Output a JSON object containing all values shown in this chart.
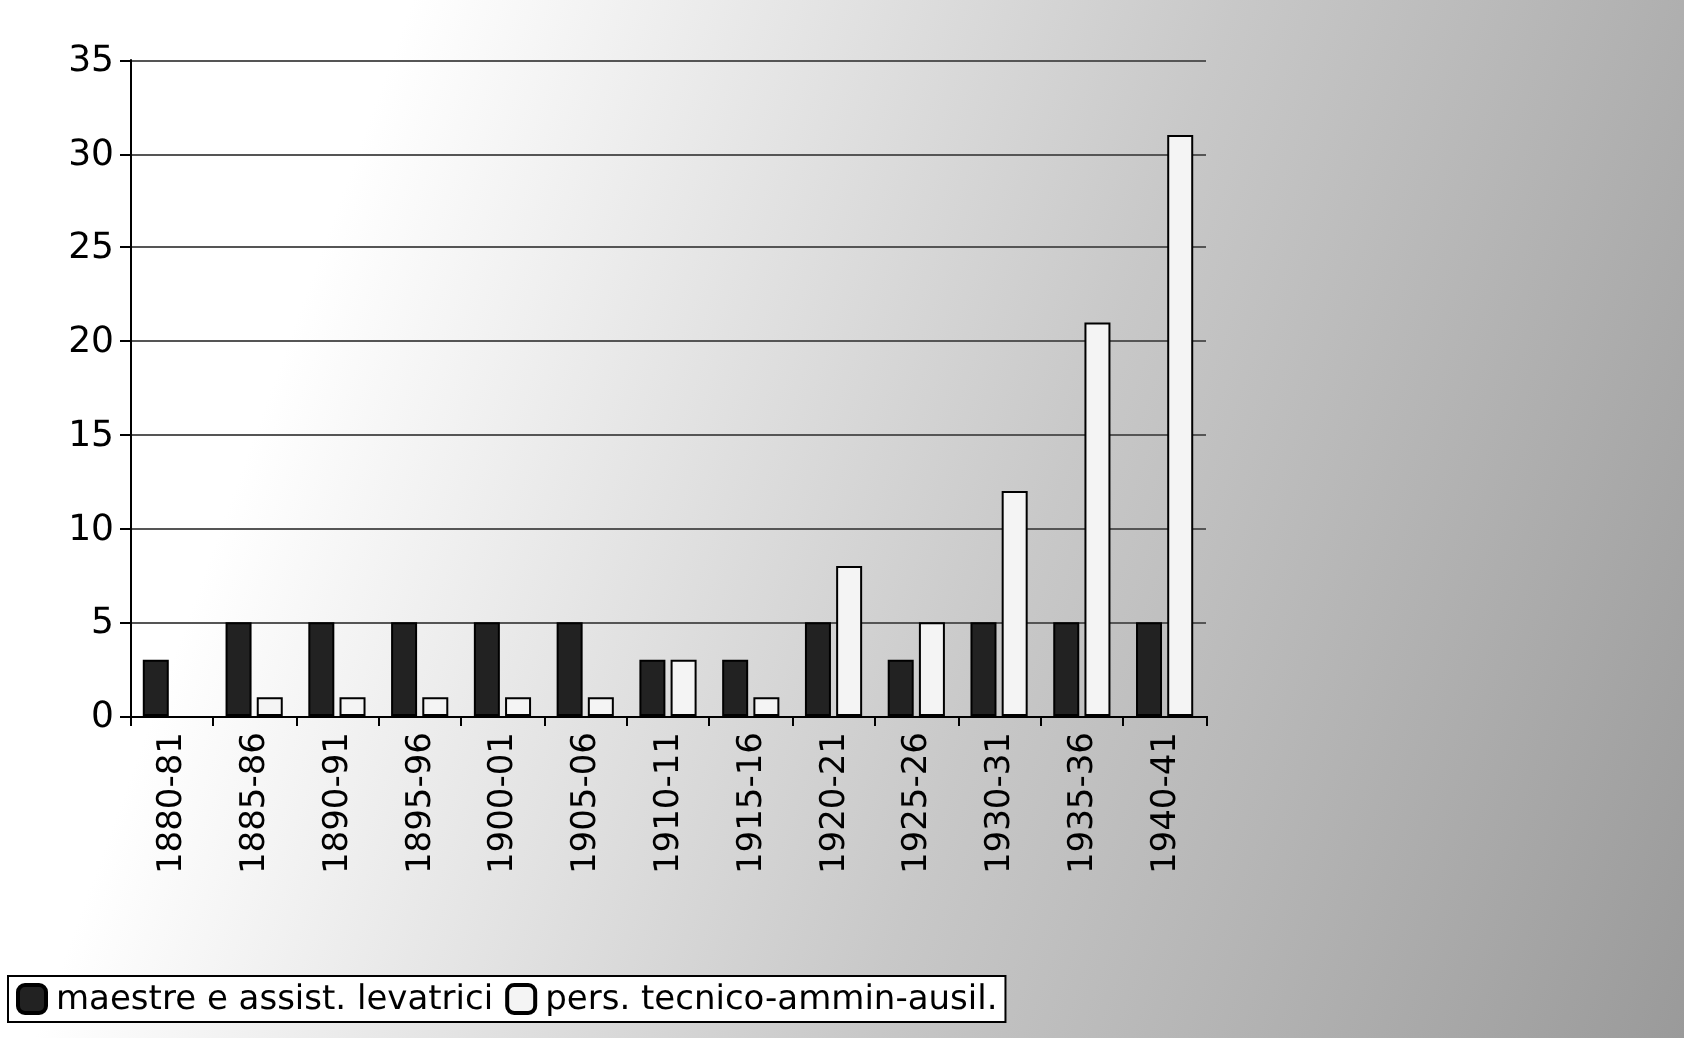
{
  "chart_data": {
    "type": "bar",
    "categories": [
      "1880-81",
      "1885-86",
      "1890-91",
      "1895-96",
      "1900-01",
      "1905-06",
      "1910-11",
      "1915-16",
      "1920-21",
      "1925-26",
      "1930-31",
      "1935-36",
      "1940-41"
    ],
    "series": [
      {
        "name": "maestre e assist. levatrici",
        "color": "#222222",
        "values": [
          3,
          5,
          5,
          5,
          5,
          5,
          3,
          3,
          5,
          3,
          5,
          5,
          5
        ]
      },
      {
        "name": "pers. tecnico-ammin-ausil.",
        "color": "#f4f4f4",
        "values": [
          null,
          1,
          1,
          1,
          1,
          1,
          3,
          1,
          8,
          5,
          12,
          21,
          31
        ]
      }
    ],
    "ylim": [
      0,
      35
    ],
    "yticks": [
      0,
      5,
      10,
      15,
      20,
      25,
      30,
      35
    ],
    "grid": "y",
    "legend": "bottom left"
  }
}
